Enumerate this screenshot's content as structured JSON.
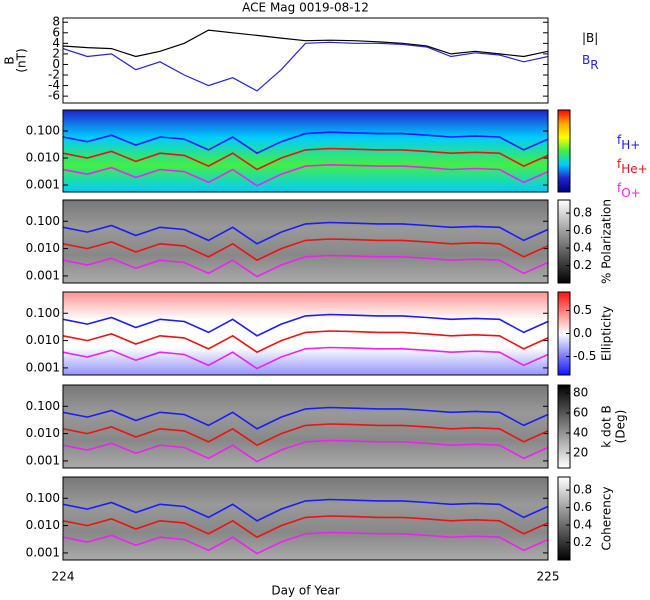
{
  "chart_data": [
    {
      "type": "line",
      "title": "ACE Mag 0019-08-12",
      "ylabel": [
        "B",
        "(nT)"
      ],
      "x": [
        224,
        224.05,
        224.1,
        224.15,
        224.2,
        224.25,
        224.3,
        224.35,
        224.4,
        224.45,
        224.5,
        224.55,
        224.6,
        224.65,
        224.7,
        224.75,
        224.8,
        224.85,
        224.9,
        224.95,
        225
      ],
      "xlim": [
        224,
        225
      ],
      "ylim": [
        -7.3,
        8.8
      ],
      "yticks": [
        -6,
        -4,
        -2,
        0,
        2,
        4,
        6,
        8
      ],
      "series": [
        {
          "name": "|B|",
          "color": "#000000",
          "values": [
            3.5,
            3.2,
            3.0,
            1.5,
            2.5,
            4.0,
            6.5,
            6.0,
            5.5,
            5.0,
            4.5,
            4.6,
            4.5,
            4.3,
            4.0,
            3.5,
            2.0,
            2.5,
            2.0,
            1.5,
            2.5
          ]
        },
        {
          "name": "B",
          "subscript": "R",
          "color": "#2222dd",
          "values": [
            3.0,
            1.5,
            2.0,
            -1.0,
            0.5,
            -2.0,
            -4.0,
            -2.5,
            -5.0,
            -1.0,
            4.0,
            4.2,
            4.0,
            4.0,
            3.8,
            3.3,
            1.5,
            2.2,
            1.8,
            0.5,
            1.5
          ]
        }
      ]
    },
    {
      "type": "spectrogram",
      "log_y": true,
      "colormap": [
        "#ff0000",
        "#ffaa00",
        "#ffff00",
        "#44ee44",
        "#00ccff",
        "#2222cc",
        "#000080"
      ],
      "x": [
        224,
        224.05,
        224.1,
        224.15,
        224.2,
        224.25,
        224.3,
        224.35,
        224.4,
        224.45,
        224.5,
        224.55,
        224.6,
        224.65,
        224.7,
        224.75,
        224.8,
        224.85,
        224.9,
        224.95,
        225
      ],
      "xlim": [
        224,
        225
      ],
      "ylim": [
        0.00055,
        0.6
      ],
      "yticks": [
        {
          "value": 0.001,
          "label": "0.001"
        },
        {
          "value": 0.01,
          "label": "0.010"
        },
        {
          "value": 0.1,
          "label": "0.100"
        }
      ],
      "series": [
        {
          "name": "f",
          "subscript": "H+",
          "color": "#1a1aff",
          "values": [
            0.06,
            0.04,
            0.07,
            0.03,
            0.06,
            0.05,
            0.02,
            0.06,
            0.015,
            0.04,
            0.08,
            0.09,
            0.085,
            0.08,
            0.08,
            0.07,
            0.06,
            0.065,
            0.06,
            0.02,
            0.05
          ]
        },
        {
          "name": "f",
          "subscript": "He+",
          "color": "#ee1111",
          "values": [
            0.015,
            0.01,
            0.0175,
            0.0075,
            0.015,
            0.0125,
            0.005,
            0.015,
            0.00375,
            0.01,
            0.02,
            0.0225,
            0.02125,
            0.02,
            0.02,
            0.0175,
            0.015,
            0.01625,
            0.015,
            0.005,
            0.0125
          ]
        },
        {
          "name": "f",
          "subscript": "O+",
          "color": "#ee22ee",
          "values": [
            0.00375,
            0.0025,
            0.0044,
            0.0019,
            0.00375,
            0.0031,
            0.00125,
            0.00375,
            0.00094,
            0.0025,
            0.005,
            0.0056,
            0.0053,
            0.005,
            0.005,
            0.0044,
            0.00375,
            0.0041,
            0.00375,
            0.00125,
            0.0031
          ]
        }
      ]
    },
    {
      "type": "spectrogram",
      "log_y": true,
      "colorbar_label": "% Polarization",
      "clim": [
        0,
        0.95
      ],
      "cticks": [
        0.2,
        0.4,
        0.6,
        0.8
      ],
      "colormap": [
        "#ffffff",
        "#000000"
      ],
      "x": [
        224,
        224.05,
        224.1,
        224.15,
        224.2,
        224.25,
        224.3,
        224.35,
        224.4,
        224.45,
        224.5,
        224.55,
        224.6,
        224.65,
        224.7,
        224.75,
        224.8,
        224.85,
        224.9,
        224.95,
        225
      ],
      "xlim": [
        224,
        225
      ],
      "ylim": [
        0.00055,
        0.6
      ],
      "yticks": [
        {
          "value": 0.001,
          "label": "0.001"
        },
        {
          "value": 0.01,
          "label": "0.010"
        },
        {
          "value": 0.1,
          "label": "0.100"
        }
      ],
      "series": [
        {
          "color": "#1a1aff",
          "values": [
            0.06,
            0.04,
            0.07,
            0.03,
            0.06,
            0.05,
            0.02,
            0.06,
            0.015,
            0.04,
            0.08,
            0.09,
            0.085,
            0.08,
            0.08,
            0.07,
            0.06,
            0.065,
            0.06,
            0.02,
            0.05
          ]
        },
        {
          "color": "#ee1111",
          "values": [
            0.015,
            0.01,
            0.0175,
            0.0075,
            0.015,
            0.0125,
            0.005,
            0.015,
            0.00375,
            0.01,
            0.02,
            0.0225,
            0.02125,
            0.02,
            0.02,
            0.0175,
            0.015,
            0.01625,
            0.015,
            0.005,
            0.0125
          ]
        },
        {
          "color": "#ee22ee",
          "values": [
            0.00375,
            0.0025,
            0.0044,
            0.0019,
            0.00375,
            0.0031,
            0.00125,
            0.00375,
            0.00094,
            0.0025,
            0.005,
            0.0056,
            0.0053,
            0.005,
            0.005,
            0.0044,
            0.00375,
            0.0041,
            0.00375,
            0.00125,
            0.0031
          ]
        }
      ]
    },
    {
      "type": "spectrogram",
      "log_y": true,
      "colorbar_label": "Ellipticity",
      "clim": [
        -0.9,
        0.9
      ],
      "cticks": [
        -0.5,
        {
          "value": 0,
          "label": "0.0"
        },
        0.5
      ],
      "colormap": [
        "#ff1111",
        "#ffffff",
        "#1111ff"
      ],
      "x": [
        224,
        224.05,
        224.1,
        224.15,
        224.2,
        224.25,
        224.3,
        224.35,
        224.4,
        224.45,
        224.5,
        224.55,
        224.6,
        224.65,
        224.7,
        224.75,
        224.8,
        224.85,
        224.9,
        224.95,
        225
      ],
      "xlim": [
        224,
        225
      ],
      "ylim": [
        0.00055,
        0.6
      ],
      "yticks": [
        {
          "value": 0.001,
          "label": "0.001"
        },
        {
          "value": 0.01,
          "label": "0.010"
        },
        {
          "value": 0.1,
          "label": "0.100"
        }
      ],
      "series": [
        {
          "color": "#1a1aff",
          "values": [
            0.06,
            0.04,
            0.07,
            0.03,
            0.06,
            0.05,
            0.02,
            0.06,
            0.015,
            0.04,
            0.08,
            0.09,
            0.085,
            0.08,
            0.08,
            0.07,
            0.06,
            0.065,
            0.06,
            0.02,
            0.05
          ]
        },
        {
          "color": "#ee1111",
          "values": [
            0.015,
            0.01,
            0.0175,
            0.0075,
            0.015,
            0.0125,
            0.005,
            0.015,
            0.00375,
            0.01,
            0.02,
            0.0225,
            0.02125,
            0.02,
            0.02,
            0.0175,
            0.015,
            0.01625,
            0.015,
            0.005,
            0.0125
          ]
        },
        {
          "color": "#ee22ee",
          "values": [
            0.00375,
            0.0025,
            0.0044,
            0.0019,
            0.00375,
            0.0031,
            0.00125,
            0.00375,
            0.00094,
            0.0025,
            0.005,
            0.0056,
            0.0053,
            0.005,
            0.005,
            0.0044,
            0.00375,
            0.0041,
            0.00375,
            0.00125,
            0.0031
          ]
        }
      ]
    },
    {
      "type": "spectrogram",
      "log_y": true,
      "colorbar_label": [
        "k dot B",
        "(Deg)"
      ],
      "clim": [
        5,
        88
      ],
      "cticks": [
        20,
        40,
        60,
        80
      ],
      "colormap": [
        "#000000",
        "#ffffff"
      ],
      "x": [
        224,
        224.05,
        224.1,
        224.15,
        224.2,
        224.25,
        224.3,
        224.35,
        224.4,
        224.45,
        224.5,
        224.55,
        224.6,
        224.65,
        224.7,
        224.75,
        224.8,
        224.85,
        224.9,
        224.95,
        225
      ],
      "xlim": [
        224,
        225
      ],
      "ylim": [
        0.00055,
        0.6
      ],
      "yticks": [
        {
          "value": 0.001,
          "label": "0.001"
        },
        {
          "value": 0.01,
          "label": "0.010"
        },
        {
          "value": 0.1,
          "label": "0.100"
        }
      ],
      "series": [
        {
          "color": "#1a1aff",
          "values": [
            0.06,
            0.04,
            0.07,
            0.03,
            0.06,
            0.05,
            0.02,
            0.06,
            0.015,
            0.04,
            0.08,
            0.09,
            0.085,
            0.08,
            0.08,
            0.07,
            0.06,
            0.065,
            0.06,
            0.02,
            0.05
          ]
        },
        {
          "color": "#ee1111",
          "values": [
            0.015,
            0.01,
            0.0175,
            0.0075,
            0.015,
            0.0125,
            0.005,
            0.015,
            0.00375,
            0.01,
            0.02,
            0.0225,
            0.02125,
            0.02,
            0.02,
            0.0175,
            0.015,
            0.01625,
            0.015,
            0.005,
            0.0125
          ]
        },
        {
          "color": "#ee22ee",
          "values": [
            0.00375,
            0.0025,
            0.0044,
            0.0019,
            0.00375,
            0.0031,
            0.00125,
            0.00375,
            0.00094,
            0.0025,
            0.005,
            0.0056,
            0.0053,
            0.005,
            0.005,
            0.0044,
            0.00375,
            0.0041,
            0.00375,
            0.00125,
            0.0031
          ]
        }
      ]
    },
    {
      "type": "spectrogram",
      "log_y": true,
      "colorbar_label": "Coherency",
      "clim": [
        0,
        0.95
      ],
      "cticks": [
        0.2,
        0.4,
        0.6,
        0.8
      ],
      "colormap": [
        "#ffffff",
        "#000000"
      ],
      "xlabel": "Day of Year",
      "xticks": [
        224,
        225
      ],
      "x": [
        224,
        224.05,
        224.1,
        224.15,
        224.2,
        224.25,
        224.3,
        224.35,
        224.4,
        224.45,
        224.5,
        224.55,
        224.6,
        224.65,
        224.7,
        224.75,
        224.8,
        224.85,
        224.9,
        224.95,
        225
      ],
      "xlim": [
        224,
        225
      ],
      "ylim": [
        0.00055,
        0.6
      ],
      "yticks": [
        {
          "value": 0.001,
          "label": "0.001"
        },
        {
          "value": 0.01,
          "label": "0.010"
        },
        {
          "value": 0.1,
          "label": "0.100"
        }
      ],
      "series": [
        {
          "color": "#1a1aff",
          "values": [
            0.06,
            0.04,
            0.07,
            0.03,
            0.06,
            0.05,
            0.02,
            0.06,
            0.015,
            0.04,
            0.08,
            0.09,
            0.085,
            0.08,
            0.08,
            0.07,
            0.06,
            0.065,
            0.06,
            0.02,
            0.05
          ]
        },
        {
          "color": "#ee1111",
          "values": [
            0.015,
            0.01,
            0.0175,
            0.0075,
            0.015,
            0.0125,
            0.005,
            0.015,
            0.00375,
            0.01,
            0.02,
            0.0225,
            0.02125,
            0.02,
            0.02,
            0.0175,
            0.015,
            0.01625,
            0.015,
            0.005,
            0.0125
          ]
        },
        {
          "color": "#ee22ee",
          "values": [
            0.00375,
            0.0025,
            0.0044,
            0.0019,
            0.00375,
            0.0031,
            0.00125,
            0.00375,
            0.00094,
            0.0025,
            0.005,
            0.0056,
            0.0053,
            0.005,
            0.005,
            0.0044,
            0.00375,
            0.0041,
            0.00375,
            0.00125,
            0.0031
          ]
        }
      ]
    }
  ]
}
